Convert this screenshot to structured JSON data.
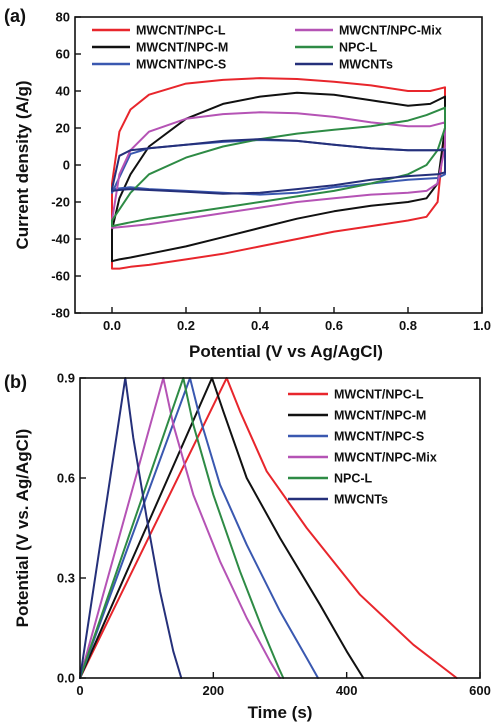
{
  "panels": [
    {
      "id": "a",
      "label": "(a)"
    },
    {
      "id": "b",
      "label": "(b)"
    }
  ],
  "chart_data": [
    {
      "type": "line",
      "panel": "(a)",
      "xlabel": "Potential (V vs Ag/AgCl)",
      "ylabel": "Current density (A/g)",
      "xlim": [
        -0.1,
        1.0
      ],
      "ylim": [
        -80,
        80
      ],
      "xticks": [
        0.0,
        0.2,
        0.4,
        0.6,
        0.8,
        1.0
      ],
      "yticks": [
        -80,
        -60,
        -40,
        -20,
        0,
        20,
        40,
        60,
        80
      ],
      "xtick_labels": [
        "0.0",
        "0.2",
        "0.4",
        "0.6",
        "0.8",
        "1.0"
      ],
      "ytick_labels": [
        "-80",
        "-60",
        "-40",
        "-20",
        "0",
        "20",
        "40",
        "60",
        "80"
      ],
      "grid": false,
      "legend": "top, two columns",
      "series": [
        {
          "name": "MWCNT/NPC-L",
          "color": "#e8262c",
          "x": [
            0,
            0.02,
            0.05,
            0.1,
            0.2,
            0.3,
            0.4,
            0.5,
            0.6,
            0.7,
            0.8,
            0.86,
            0.9,
            0.9,
            0.88,
            0.85,
            0.8,
            0.7,
            0.6,
            0.5,
            0.4,
            0.3,
            0.2,
            0.1,
            0.05,
            0.02,
            0,
            0
          ],
          "y": [
            -10,
            18,
            30,
            38,
            44,
            46,
            47,
            46.5,
            45,
            43,
            40,
            40,
            42,
            20,
            -20,
            -28,
            -30,
            -33,
            -36,
            -40,
            -44,
            -48,
            -51,
            -54,
            -55,
            -56,
            -56,
            -10
          ]
        },
        {
          "name": "MWCNT/NPC-M",
          "color": "#111111",
          "x": [
            0,
            0.02,
            0.05,
            0.1,
            0.2,
            0.3,
            0.4,
            0.5,
            0.6,
            0.7,
            0.8,
            0.86,
            0.9,
            0.9,
            0.88,
            0.85,
            0.8,
            0.7,
            0.6,
            0.5,
            0.4,
            0.3,
            0.2,
            0.1,
            0.05,
            0.02,
            0,
            0
          ],
          "y": [
            -35,
            -18,
            -5,
            10,
            25,
            33,
            37,
            39,
            38,
            35,
            32,
            33,
            37,
            20,
            -10,
            -18,
            -20,
            -22,
            -25,
            -29,
            -34,
            -39,
            -44,
            -48,
            -50,
            -51,
            -52,
            -35
          ]
        },
        {
          "name": "MWCNT/NPC-S",
          "color": "#3a58b0",
          "x": [
            0,
            0.05,
            0.1,
            0.2,
            0.3,
            0.4,
            0.5,
            0.6,
            0.7,
            0.8,
            0.88,
            0.9,
            0.9,
            0.88,
            0.8,
            0.7,
            0.6,
            0.5,
            0.4,
            0.3,
            0.2,
            0.1,
            0.05,
            0,
            0
          ],
          "y": [
            -15,
            6,
            9,
            11,
            12.5,
            13.5,
            13,
            11,
            9,
            8,
            8,
            9,
            -5,
            -7,
            -8,
            -10,
            -12,
            -15,
            -16,
            -15,
            -14,
            -13,
            -12,
            -13,
            -15
          ]
        },
        {
          "name": "MWCNT/NPC-Mix",
          "color": "#b553b5",
          "x": [
            0,
            0.02,
            0.05,
            0.1,
            0.2,
            0.3,
            0.4,
            0.5,
            0.6,
            0.7,
            0.8,
            0.86,
            0.9,
            0.9,
            0.88,
            0.85,
            0.8,
            0.7,
            0.6,
            0.5,
            0.4,
            0.3,
            0.2,
            0.1,
            0.05,
            0,
            0
          ],
          "y": [
            -30,
            -5,
            8,
            18,
            25,
            27.5,
            28.5,
            28,
            26,
            23,
            21,
            21,
            23,
            10,
            -10,
            -14,
            -15,
            -16,
            -18,
            -20,
            -23,
            -26,
            -29,
            -32,
            -33,
            -34,
            -30
          ]
        },
        {
          "name": "NPC-L",
          "color": "#2e8b45",
          "x": [
            0,
            0.05,
            0.1,
            0.2,
            0.3,
            0.4,
            0.5,
            0.6,
            0.7,
            0.8,
            0.85,
            0.9,
            0.9,
            0.88,
            0.85,
            0.8,
            0.7,
            0.6,
            0.5,
            0.4,
            0.3,
            0.2,
            0.1,
            0.05,
            0,
            0
          ],
          "y": [
            -30,
            -15,
            -5,
            4,
            10,
            14,
            17,
            19,
            21,
            24,
            27,
            31,
            20,
            8,
            0,
            -5,
            -10,
            -14,
            -17,
            -20,
            -23,
            -26,
            -29,
            -31,
            -33,
            -30
          ]
        },
        {
          "name": "MWCNTs",
          "color": "#25307a",
          "x": [
            0,
            0.02,
            0.05,
            0.1,
            0.2,
            0.3,
            0.4,
            0.5,
            0.6,
            0.7,
            0.8,
            0.88,
            0.9,
            0.9,
            0.88,
            0.8,
            0.7,
            0.6,
            0.5,
            0.4,
            0.3,
            0.2,
            0.1,
            0.05,
            0.02,
            0,
            0
          ],
          "y": [
            -13,
            5,
            8,
            9,
            11,
            13,
            14,
            13,
            11,
            9,
            8,
            8,
            8,
            -4,
            -5,
            -6,
            -8,
            -11,
            -13,
            -15,
            -15.5,
            -14.5,
            -13.5,
            -13,
            -13.5,
            -14,
            -13
          ]
        }
      ]
    },
    {
      "type": "line",
      "panel": "(b)",
      "xlabel": "Time (s)",
      "ylabel": "Potential (V vs. Ag/AgCl)",
      "xlim": [
        0,
        600
      ],
      "ylim": [
        0,
        0.9
      ],
      "xticks": [
        0,
        200,
        400,
        600
      ],
      "yticks": [
        0.0,
        0.3,
        0.6,
        0.9
      ],
      "xtick_labels": [
        "0",
        "200",
        "400",
        "600"
      ],
      "ytick_labels": [
        "0.0",
        "0.3",
        "0.6",
        "0.9"
      ],
      "grid": false,
      "legend": "top-right",
      "series": [
        {
          "name": "MWCNT/NPC-L",
          "color": "#e8262c",
          "x": [
            0,
            220,
            240,
            280,
            340,
            420,
            500,
            565
          ],
          "y": [
            0,
            0.9,
            0.8,
            0.62,
            0.45,
            0.25,
            0.1,
            0
          ]
        },
        {
          "name": "MWCNT/NPC-M",
          "color": "#111111",
          "x": [
            0,
            198,
            215,
            250,
            300,
            360,
            400,
            425
          ],
          "y": [
            0,
            0.9,
            0.8,
            0.6,
            0.42,
            0.22,
            0.08,
            0
          ]
        },
        {
          "name": "MWCNT/NPC-S",
          "color": "#3a58b0",
          "x": [
            0,
            165,
            180,
            210,
            250,
            300,
            340,
            357
          ],
          "y": [
            0,
            0.9,
            0.78,
            0.58,
            0.4,
            0.2,
            0.06,
            0
          ]
        },
        {
          "name": "MWCNT/NPC-Mix",
          "color": "#b553b5",
          "x": [
            0,
            125,
            140,
            170,
            210,
            250,
            285,
            300
          ],
          "y": [
            0,
            0.9,
            0.76,
            0.55,
            0.35,
            0.18,
            0.05,
            0
          ]
        },
        {
          "name": "NPC-L",
          "color": "#2e8b45",
          "x": [
            0,
            155,
            170,
            200,
            240,
            275,
            298,
            305
          ],
          "y": [
            0,
            0.9,
            0.76,
            0.55,
            0.32,
            0.14,
            0.03,
            0
          ]
        },
        {
          "name": "MWCNTs",
          "color": "#25307a",
          "x": [
            0,
            68,
            80,
            100,
            120,
            140,
            152
          ],
          "y": [
            0,
            0.9,
            0.72,
            0.48,
            0.26,
            0.08,
            0
          ]
        }
      ]
    }
  ]
}
